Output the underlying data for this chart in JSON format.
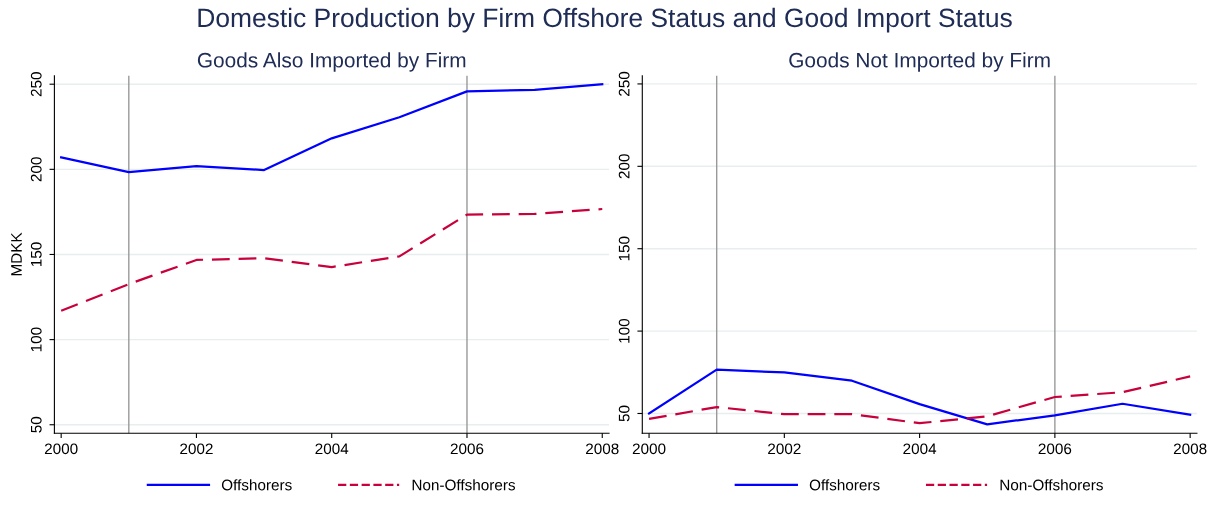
{
  "chart_data": [
    {
      "type": "line",
      "annotations": [
        "Domestic Production by Firm Offshore Status and Good Import Status"
      ],
      "title": "Goods Also Imported by Firm",
      "ylabel": "MDKK",
      "x": [
        2000,
        2001,
        2002,
        2003,
        2004,
        2005,
        2006,
        2007,
        2008
      ],
      "series": [
        {
          "name": "Offshorers",
          "color": "#0000ff",
          "line_style": "solid",
          "values": [
            207,
            198.4,
            201.9,
            199.6,
            218.2,
            230.6,
            245.8,
            246.7,
            250
          ]
        },
        {
          "name": "Non-Offshorers",
          "color": "#c8003c",
          "line_style": "dashed",
          "values": [
            117,
            132.6,
            146.8,
            147.8,
            142.6,
            148.9,
            173.4,
            173.8,
            176.7
          ]
        }
      ],
      "xlim": [
        1999.9,
        2008.1
      ],
      "xticks": [
        2000,
        2002,
        2004,
        2006,
        2008
      ],
      "ylim": [
        45,
        255
      ],
      "yticks": [
        50,
        100,
        150,
        200,
        250
      ],
      "ref_lines": [
        {
          "axis": "x",
          "value": 2001,
          "color": "#999999"
        },
        {
          "axis": "x",
          "value": 2006,
          "color": "#999999"
        }
      ],
      "grid": "y",
      "legend": "bottom",
      "marker": "none"
    },
    {
      "type": "line",
      "title": "Goods Not Imported by Firm",
      "x": [
        2000,
        2001,
        2002,
        2003,
        2004,
        2005,
        2006,
        2007,
        2008
      ],
      "series": [
        {
          "name": "Offshorers",
          "color": "#0000ff",
          "line_style": "solid",
          "values": [
            50,
            76.6,
            74.9,
            69.9,
            55.7,
            43.4,
            48.9,
            55.9,
            49.3
          ]
        },
        {
          "name": "Non-Offshorers",
          "color": "#c8003c",
          "line_style": "dashed",
          "values": [
            46.7,
            53.9,
            49.6,
            49.6,
            44.1,
            48.3,
            60,
            62.9,
            72.5
          ]
        }
      ],
      "xlim": [
        1999.9,
        2008.1
      ],
      "xticks": [
        2000,
        2002,
        2004,
        2006,
        2008
      ],
      "ylim": [
        38,
        255
      ],
      "yticks": [
        50,
        100,
        150,
        200,
        250
      ],
      "ref_lines": [
        {
          "axis": "x",
          "value": 2001,
          "color": "#999999"
        },
        {
          "axis": "x",
          "value": 2006,
          "color": "#999999"
        }
      ],
      "grid": "y",
      "legend": "bottom",
      "marker": "none"
    }
  ]
}
